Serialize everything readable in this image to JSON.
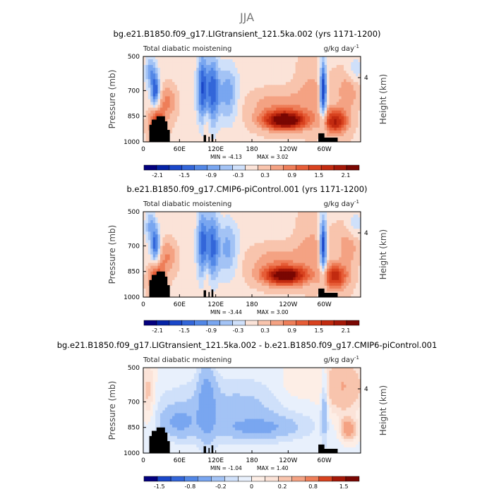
{
  "figure": {
    "title": "JJA",
    "x_ticks": [
      "0",
      "60E",
      "120E",
      "180",
      "120W",
      "60W"
    ],
    "y_ticks": [
      "500",
      "700",
      "850",
      "1000"
    ],
    "ylabel": "Pressure (mb)",
    "ylabel_right": "Height (km)",
    "right_tick": "4",
    "subtitle_left": "Total diabatic moistening",
    "units": "g/kg day",
    "units_exp": "-1"
  },
  "chart_data": [
    {
      "type": "heatmap",
      "title": "bg.e21.B1850.f09_g17.LIGtransient_121.5ka.002 (yrs 1171-1200)",
      "min_label": "MIN = -4.13",
      "max_label": "MAX = 3.02",
      "min": -4.13,
      "max": 3.02,
      "colorbar_ticks": [
        "-2.1",
        "-1.5",
        "-0.9",
        "-0.3",
        "0.3",
        "0.9",
        "1.5",
        "2.1"
      ],
      "colorbar_levels": [
        -2.4,
        -2.1,
        -1.8,
        -1.5,
        -1.2,
        -0.9,
        -0.6,
        -0.3,
        0,
        0.3,
        0.6,
        0.9,
        1.2,
        1.5,
        1.8,
        2.1,
        2.4
      ],
      "colors": [
        "#03007e",
        "#0523a6",
        "#1a47c9",
        "#3366d9",
        "#5287e6",
        "#79a6f0",
        "#a3c3f5",
        "#cfe0fa",
        "#fbe3d8",
        "#f8c4ad",
        "#f4a283",
        "#ee7e59",
        "#e65d37",
        "#d8421f",
        "#c22b10",
        "#a51808",
        "#7a0702"
      ],
      "xlim": [
        0,
        360
      ],
      "ylim": [
        1000,
        500
      ]
    },
    {
      "type": "heatmap",
      "title": "b.e21.B1850.f09_g17.CMIP6-piControl.001 (yrs 1171-1200)",
      "min_label": "MIN = -3.44",
      "max_label": "MAX = 3.00",
      "min": -3.44,
      "max": 3.0,
      "colorbar_ticks": [
        "-2.1",
        "-1.5",
        "-0.9",
        "-0.3",
        "0.3",
        "0.9",
        "1.5",
        "2.1"
      ],
      "colorbar_levels": [
        -2.4,
        -2.1,
        -1.8,
        -1.5,
        -1.2,
        -0.9,
        -0.6,
        -0.3,
        0,
        0.3,
        0.6,
        0.9,
        1.2,
        1.5,
        1.8,
        2.1,
        2.4
      ],
      "colors": [
        "#03007e",
        "#0523a6",
        "#1a47c9",
        "#3366d9",
        "#5287e6",
        "#79a6f0",
        "#a3c3f5",
        "#cfe0fa",
        "#fbe3d8",
        "#f8c4ad",
        "#f4a283",
        "#ee7e59",
        "#e65d37",
        "#d8421f",
        "#c22b10",
        "#a51808",
        "#7a0702"
      ],
      "xlim": [
        0,
        360
      ],
      "ylim": [
        1000,
        500
      ]
    },
    {
      "type": "heatmap",
      "title": "bg.e21.B1850.f09_g17.LIGtransient_121.5ka.002 - b.e21.B1850.f09_g17.CMIP6-piControl.001",
      "min_label": "MIN = -1.04",
      "max_label": "MAX = 1.40",
      "min": -1.04,
      "max": 1.4,
      "colorbar_ticks": [
        "-1.5",
        "-0.8",
        "-0.2",
        "0",
        "0.2",
        "0.8",
        "1.5"
      ],
      "colorbar_levels": [
        -2.0,
        -1.5,
        -1.2,
        -0.8,
        -0.4,
        -0.2,
        -0.1,
        0,
        0.1,
        0.2,
        0.4,
        0.8,
        1.2,
        1.5,
        2.0
      ],
      "colors": [
        "#03007e",
        "#1a47c9",
        "#3366d9",
        "#5287e6",
        "#79a6f0",
        "#a3c3f5",
        "#cfe0fa",
        "#e8f0fc",
        "#fdeee6",
        "#fbe3d8",
        "#f8c4ad",
        "#f4a283",
        "#ee7e59",
        "#d8421f",
        "#a51808",
        "#7a0702"
      ],
      "xlim": [
        0,
        360
      ],
      "ylim": [
        1000,
        500
      ]
    }
  ]
}
